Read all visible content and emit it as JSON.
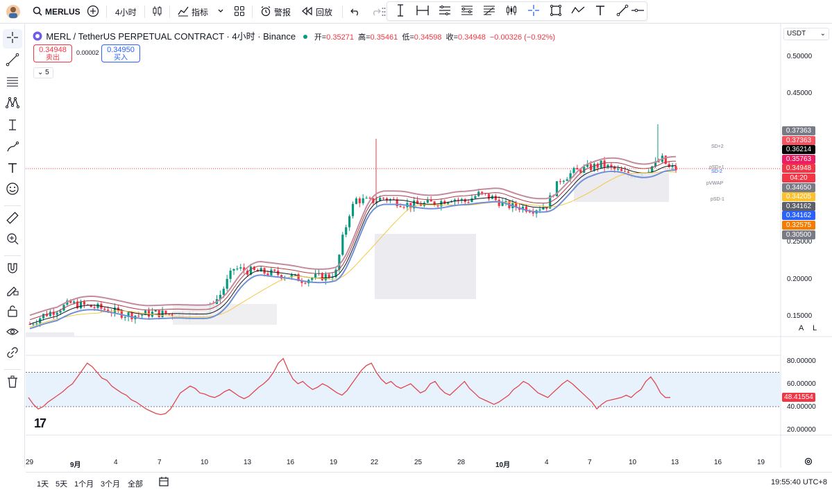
{
  "toolbar": {
    "symbol": "MERLUSD",
    "interval": "4小时",
    "indicators_label": "指标",
    "alert_label": "警报",
    "replay_label": "回放"
  },
  "legend": {
    "title": "MERL / TetherUS PERPETUAL CONTRACT · 4小时 · Binance",
    "open_k": "开=",
    "open_v": "0.35271",
    "high_k": "高=",
    "high_v": "0.35461",
    "low_k": "低=",
    "low_v": "0.34598",
    "close_k": "收=",
    "close_v": "0.34948",
    "change": "−0.00326 (−0.92%)",
    "sell_price": "0.34948",
    "sell_label": "卖出",
    "spread": "0.00002",
    "buy_price": "0.34950",
    "buy_label": "买入",
    "collapsed_count": "5"
  },
  "price_axis": {
    "currency": "USDT",
    "ticks": [
      "0.50000",
      "0.45000",
      "0.25000",
      "0.20000",
      "0.15000"
    ],
    "auto_label": "A",
    "log_label": "L"
  },
  "price_tags": [
    {
      "value": "0.37363",
      "color": "#787b86"
    },
    {
      "value": "0.37363",
      "color": "#f7525f"
    },
    {
      "value": "0.36214",
      "color": "#000000"
    },
    {
      "value": "0.35763",
      "color": "#e91e63"
    },
    {
      "value": "0.34948",
      "color": "#f23645"
    },
    {
      "value": "04:20",
      "color": "#f23645"
    },
    {
      "value": "0.34650",
      "color": "#787b86"
    },
    {
      "value": "0.34205",
      "color": "#fbc02d"
    },
    {
      "value": "0.34162",
      "color": "#5d606b"
    },
    {
      "value": "0.34162",
      "color": "#2962ff"
    },
    {
      "value": "0.32575",
      "color": "#f57c00"
    },
    {
      "value": "0.30500",
      "color": "#787b86"
    }
  ],
  "chart_labels": {
    "sd2": "SD+2",
    "psd1": "pSD+1",
    "sd2b": "SD-2",
    "pvwap": "pVWAP",
    "psdm1": "pSD-1"
  },
  "rsi": {
    "ticks": [
      "80.00000",
      "60.00000",
      "40.00000",
      "20.00000"
    ],
    "current": "48.41554"
  },
  "time_axis": [
    "29",
    "9月",
    "4",
    "7",
    "10",
    "13",
    "16",
    "19",
    "22",
    "25",
    "28",
    "10月",
    "4",
    "7",
    "10",
    "13",
    "16",
    "19"
  ],
  "bottom": {
    "ranges": [
      "1天",
      "5天",
      "1个月",
      "3个月",
      "全部"
    ],
    "clock": "19:55:40 UTC+8"
  },
  "colors": {
    "up": "#089981",
    "down": "#f23645",
    "rsi_line": "#e0474c",
    "rsi_band": "#e8f2fd"
  },
  "chart_data": [
    {
      "type": "candlestick",
      "title": "MERL / TetherUS PERPETUAL CONTRACT · 4小时 · Binance",
      "ylabel": "USDT",
      "x_ticks": [
        "29",
        "9月",
        "4",
        "7",
        "10",
        "13",
        "16",
        "19",
        "22",
        "25",
        "28",
        "10月",
        "4",
        "7",
        "10",
        "13",
        "16",
        "19"
      ],
      "y_ticks": [
        0.15,
        0.2,
        0.25,
        0.45,
        0.5
      ],
      "last": {
        "open": 0.35271,
        "high": 0.35461,
        "low": 0.34598,
        "close": 0.34948
      },
      "close_path": [
        [
          0,
          0.14
        ],
        [
          4,
          0.152
        ],
        [
          8,
          0.16
        ],
        [
          12,
          0.168
        ],
        [
          16,
          0.165
        ],
        [
          20,
          0.162
        ],
        [
          24,
          0.158
        ],
        [
          28,
          0.153
        ],
        [
          32,
          0.152
        ],
        [
          36,
          0.155
        ],
        [
          40,
          0.154
        ],
        [
          44,
          0.154
        ],
        [
          48,
          0.153
        ],
        [
          52,
          0.155
        ],
        [
          56,
          0.18
        ],
        [
          60,
          0.215
        ],
        [
          64,
          0.212
        ],
        [
          68,
          0.21
        ],
        [
          72,
          0.208
        ],
        [
          76,
          0.205
        ],
        [
          80,
          0.2
        ],
        [
          84,
          0.203
        ],
        [
          88,
          0.205
        ],
        [
          90,
          0.21
        ],
        [
          92,
          0.255
        ],
        [
          94,
          0.29
        ],
        [
          96,
          0.308
        ],
        [
          100,
          0.305
        ],
        [
          104,
          0.31
        ],
        [
          108,
          0.305
        ],
        [
          112,
          0.3
        ],
        [
          116,
          0.302
        ],
        [
          120,
          0.304
        ],
        [
          124,
          0.31
        ],
        [
          128,
          0.305
        ],
        [
          132,
          0.315
        ],
        [
          136,
          0.31
        ],
        [
          140,
          0.3
        ],
        [
          144,
          0.298
        ],
        [
          148,
          0.295
        ],
        [
          152,
          0.3
        ],
        [
          154,
          0.318
        ],
        [
          156,
          0.335
        ],
        [
          160,
          0.345
        ],
        [
          164,
          0.35
        ],
        [
          168,
          0.355
        ],
        [
          172,
          0.348
        ],
        [
          176,
          0.34
        ],
        [
          180,
          0.345
        ],
        [
          184,
          0.355
        ],
        [
          186,
          0.362
        ],
        [
          188,
          0.35
        ],
        [
          190,
          0.349
        ]
      ]
    },
    {
      "type": "line",
      "title": "RSI",
      "y_ticks": [
        20,
        40,
        60,
        80
      ],
      "band": [
        40,
        70
      ],
      "series": [
        {
          "values": [
            48,
            42,
            38,
            40,
            44,
            47,
            50,
            53,
            57,
            60,
            66,
            72,
            78,
            75,
            70,
            65,
            63,
            58,
            55,
            52,
            50,
            46,
            44,
            41,
            38,
            36,
            34,
            33,
            34,
            38,
            45,
            52,
            55,
            58,
            56,
            52,
            51,
            49,
            48,
            50,
            53,
            55,
            52,
            49,
            47,
            49,
            53,
            57,
            60,
            64,
            70,
            78,
            82,
            72,
            64,
            60,
            62,
            58,
            55,
            57,
            60,
            58,
            55,
            52,
            50,
            54,
            60,
            66,
            72,
            76,
            78,
            70,
            64,
            60,
            62,
            58,
            56,
            58,
            60,
            56,
            52,
            54,
            60,
            62,
            56,
            52,
            50,
            54,
            58,
            62,
            56,
            52,
            48,
            46,
            44,
            42,
            44,
            47,
            50,
            55,
            58,
            62,
            60,
            56,
            52,
            50,
            48,
            52,
            56,
            60,
            63,
            60,
            56,
            52,
            48,
            44,
            38,
            42,
            45,
            46,
            47,
            48,
            50,
            48,
            52,
            55,
            62,
            66,
            60,
            52,
            48,
            48
          ]
        }
      ]
    }
  ]
}
